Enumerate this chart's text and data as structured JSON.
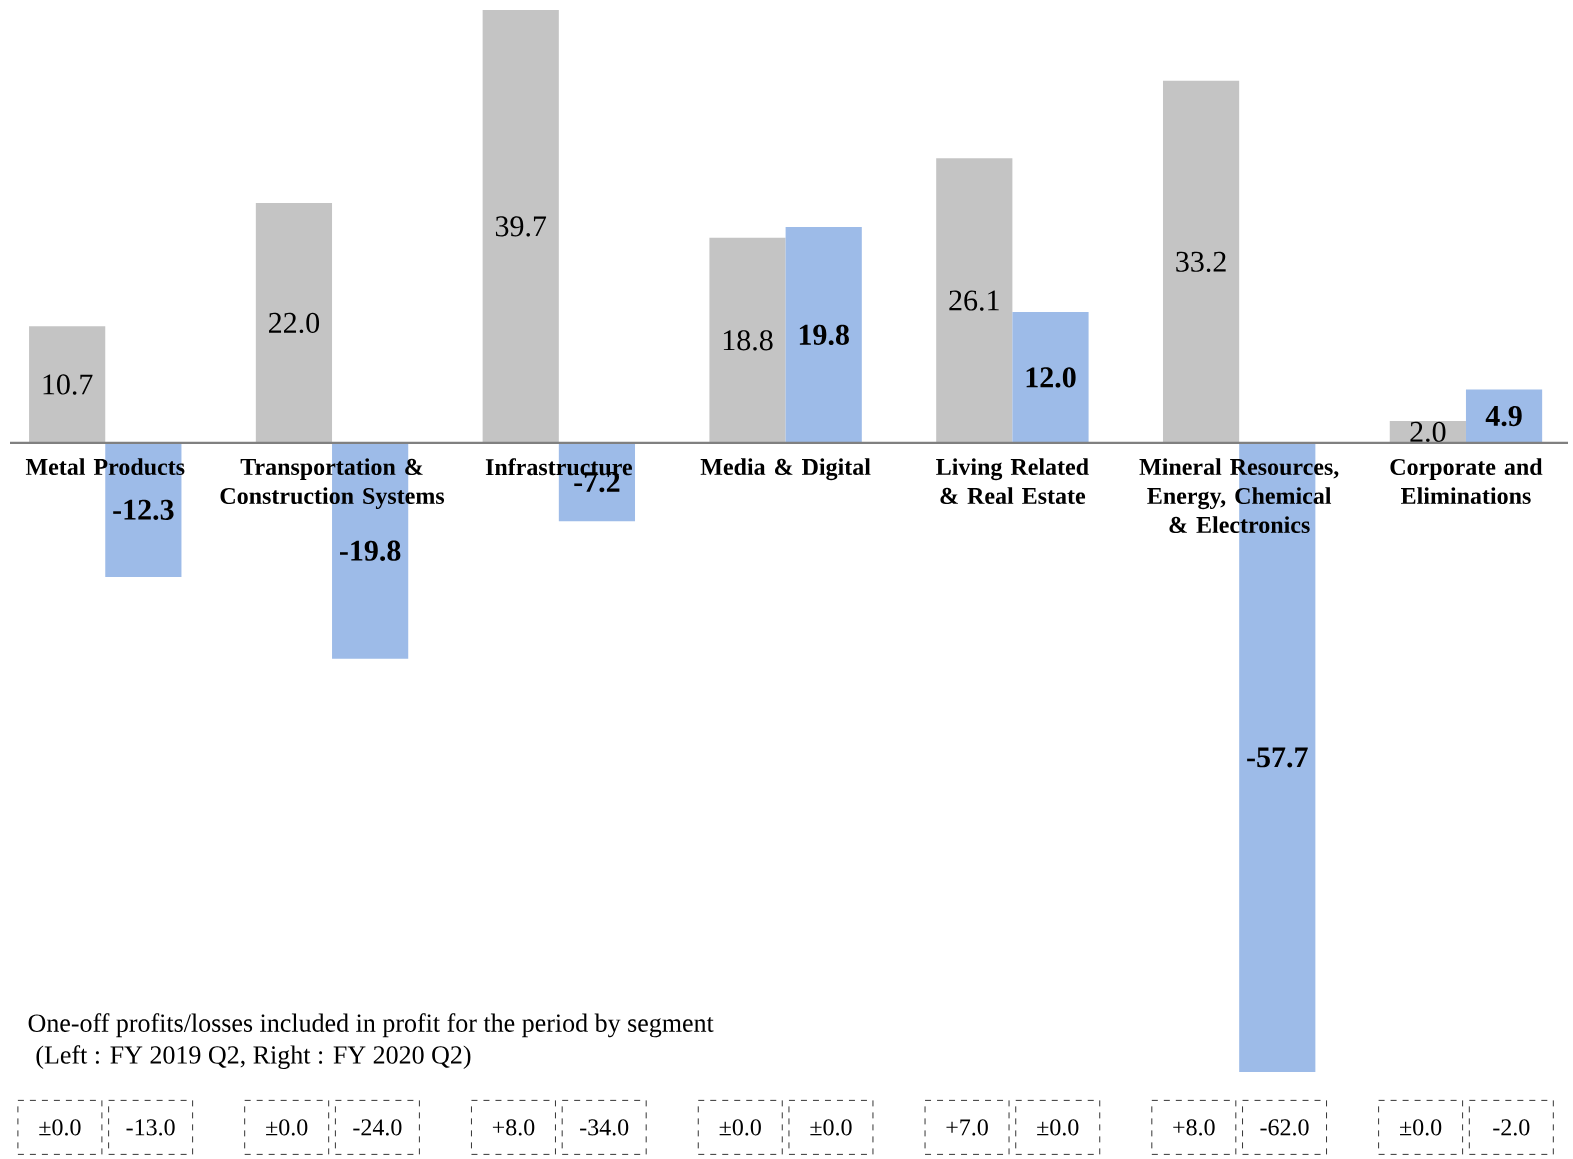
{
  "chart_data": {
    "type": "bar",
    "categories": [
      "Metal Products",
      "Transportation & Construction Systems",
      "Infrastructure",
      "Media & Digital",
      "Living Related & Real Estate",
      "Mineral Resources, Energy, Chemical & Electronics",
      "Corporate and Eliminations"
    ],
    "series": [
      {
        "color": "#c4c4c4",
        "values": [
          10.7,
          22.0,
          39.7,
          18.8,
          26.1,
          33.2,
          2.0
        ],
        "value_labels": [
          "10.7",
          "22.0",
          "39.7",
          "18.8",
          "26.1",
          "33.2",
          "2.0"
        ]
      },
      {
        "color": "#9dbbe8",
        "values": [
          -12.3,
          -19.8,
          -7.2,
          19.8,
          12.0,
          -57.7,
          4.9
        ],
        "value_labels": [
          "-12.3",
          "-19.8",
          "-7.2",
          "19.8",
          "12.0",
          "-57.7",
          "4.9"
        ]
      }
    ],
    "annotations": [
      "One-off profits/losses included in profit for the period by segment",
      "(Left : FY 2019 Q2, Right : FY 2020 Q2)",
      "±0.0",
      "-13.0",
      "±0.0",
      "-24.0",
      "+8.0",
      "-34.0",
      "±0.0",
      "±0.0",
      "+7.0",
      "±0.0",
      "+8.0",
      "-62.0",
      "±0.0",
      "-2.0"
    ]
  }
}
